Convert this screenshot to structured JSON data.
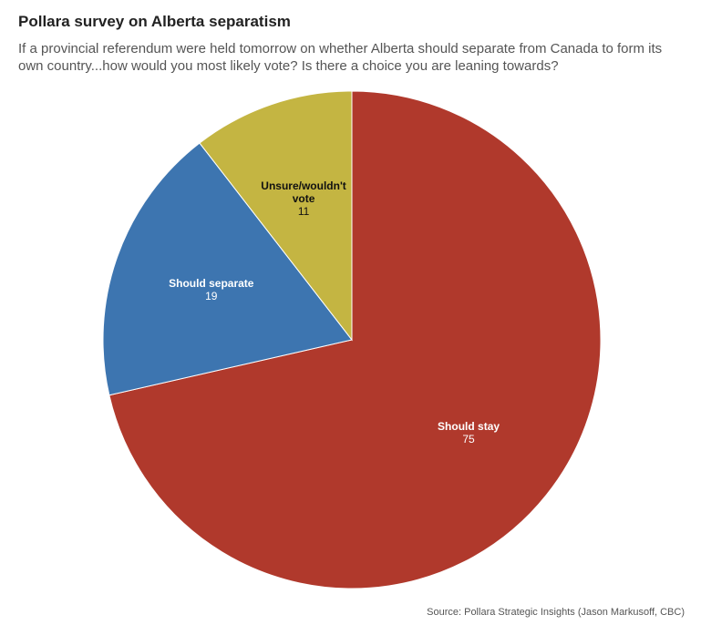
{
  "chart_data": {
    "type": "pie",
    "title": "Pollara survey on Alberta separatism",
    "subtitle": "If a provincial referendum were held tomorrow on whether Alberta should separate from Canada to form its own country...how would you most likely vote? Is there a choice you are leaning towards?",
    "source": "Source: Pollara Strategic Insights (Jason Markusoff, CBC)",
    "categories": [
      "Should stay",
      "Should separate",
      "Unsure/wouldn't vote"
    ],
    "values": [
      75,
      19,
      11
    ],
    "colors": [
      "#b0392c",
      "#3d75b0",
      "#c4b542"
    ],
    "label_colors": [
      "#ffffff",
      "#ffffff",
      "#111111"
    ]
  }
}
